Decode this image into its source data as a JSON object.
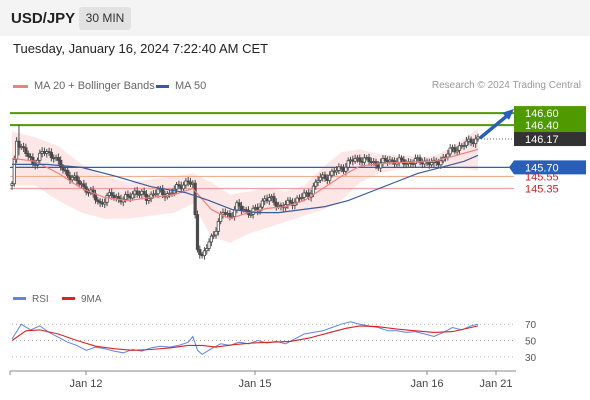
{
  "header": {
    "symbol": "USD/JPY",
    "timeframe": "30 MIN",
    "timestamp": "Tuesday, January 16, 2024 7:22:40 AM CET",
    "credit": "Research © 2024 Trading Central"
  },
  "colors": {
    "candle": "#4a4a4a",
    "ma20": "#f08080",
    "bollinger_fill": "#fde2e2",
    "ma50": "#3b5a9a",
    "resistance": "#4f9a00",
    "support": "#2a5fb8",
    "support_light": "#f2a0a0",
    "pivot": "#f0b090",
    "rsi": "#5b86e5",
    "rsi_ma": "#dd2222",
    "projection": "#2a5fb8"
  },
  "chart_data": [
    {
      "type": "candlestick",
      "legend": [
        {
          "name": "MA 20 + Bollinger Bands",
          "color": "#f08080"
        },
        {
          "name": "MA 50",
          "color": "#3b5a9a"
        }
      ],
      "x_ticks": [
        "Jan 12",
        "Jan 15",
        "Jan 16",
        "Jan 21"
      ],
      "price_range": [
        143.75,
        146.9
      ],
      "last_price": 146.17,
      "levels": [
        {
          "value": 146.6,
          "label": "146.60",
          "role": "resistance"
        },
        {
          "value": 146.4,
          "label": "146.40",
          "role": "resistance"
        },
        {
          "value": 146.17,
          "label": "146.17",
          "role": "last"
        },
        {
          "value": 145.7,
          "label": "145.70",
          "role": "pivot"
        },
        {
          "value": 145.55,
          "label": "145.55",
          "role": "support"
        },
        {
          "value": 145.35,
          "label": "145.35",
          "role": "support"
        }
      ],
      "close_path": [
        [
          0,
          145.4
        ],
        [
          2,
          146.15
        ],
        [
          5,
          146.0
        ],
        [
          9,
          145.75
        ],
        [
          13,
          145.95
        ],
        [
          18,
          145.9
        ],
        [
          22,
          145.65
        ],
        [
          27,
          145.5
        ],
        [
          32,
          145.35
        ],
        [
          38,
          145.1
        ],
        [
          43,
          145.25
        ],
        [
          48,
          145.15
        ],
        [
          53,
          145.3
        ],
        [
          58,
          145.2
        ],
        [
          63,
          145.3
        ],
        [
          68,
          145.25
        ],
        [
          72,
          145.4
        ],
        [
          76,
          145.45
        ],
        [
          78,
          145.4
        ],
        [
          79,
          144.9
        ],
        [
          80,
          144.4
        ],
        [
          82,
          144.2
        ],
        [
          85,
          144.45
        ],
        [
          88,
          144.7
        ],
        [
          91,
          144.95
        ],
        [
          94,
          144.9
        ],
        [
          97,
          145.05
        ],
        [
          100,
          145.0
        ],
        [
          103,
          144.95
        ],
        [
          106,
          145.0
        ],
        [
          109,
          145.2
        ],
        [
          112,
          145.15
        ],
        [
          116,
          145.05
        ],
        [
          120,
          145.1
        ],
        [
          124,
          145.2
        ],
        [
          128,
          145.25
        ],
        [
          132,
          145.5
        ],
        [
          136,
          145.55
        ],
        [
          140,
          145.65
        ],
        [
          143,
          145.7
        ],
        [
          146,
          145.8
        ],
        [
          150,
          145.85
        ],
        [
          154,
          145.8
        ],
        [
          158,
          145.75
        ],
        [
          162,
          145.82
        ],
        [
          166,
          145.8
        ],
        [
          170,
          145.78
        ],
        [
          174,
          145.8
        ],
        [
          178,
          145.8
        ],
        [
          182,
          145.75
        ],
        [
          186,
          145.85
        ],
        [
          190,
          146.0
        ],
        [
          194,
          146.05
        ],
        [
          198,
          146.15
        ],
        [
          201,
          146.17
        ]
      ],
      "ma20": [
        [
          0,
          145.85
        ],
        [
          10,
          145.8
        ],
        [
          20,
          145.6
        ],
        [
          30,
          145.35
        ],
        [
          40,
          145.2
        ],
        [
          50,
          145.15
        ],
        [
          60,
          145.2
        ],
        [
          70,
          145.25
        ],
        [
          78,
          145.35
        ],
        [
          86,
          145.0
        ],
        [
          94,
          144.85
        ],
        [
          102,
          144.95
        ],
        [
          110,
          145.02
        ],
        [
          118,
          145.05
        ],
        [
          126,
          145.15
        ],
        [
          134,
          145.35
        ],
        [
          142,
          145.55
        ],
        [
          150,
          145.72
        ],
        [
          158,
          145.76
        ],
        [
          166,
          145.78
        ],
        [
          174,
          145.79
        ],
        [
          182,
          145.8
        ],
        [
          190,
          145.88
        ],
        [
          201,
          146.0
        ]
      ],
      "bb_upper": [
        [
          0,
          146.3
        ],
        [
          10,
          146.2
        ],
        [
          20,
          146.05
        ],
        [
          30,
          145.75
        ],
        [
          40,
          145.55
        ],
        [
          50,
          145.45
        ],
        [
          60,
          145.5
        ],
        [
          70,
          145.55
        ],
        [
          78,
          145.6
        ],
        [
          86,
          145.45
        ],
        [
          94,
          145.25
        ],
        [
          102,
          145.3
        ],
        [
          110,
          145.35
        ],
        [
          118,
          145.3
        ],
        [
          126,
          145.4
        ],
        [
          134,
          145.7
        ],
        [
          142,
          145.95
        ],
        [
          150,
          146.0
        ],
        [
          158,
          145.92
        ],
        [
          166,
          145.9
        ],
        [
          174,
          145.88
        ],
        [
          182,
          145.88
        ],
        [
          190,
          146.05
        ],
        [
          201,
          146.35
        ]
      ],
      "bb_lower": [
        [
          0,
          145.4
        ],
        [
          10,
          145.4
        ],
        [
          20,
          145.15
        ],
        [
          30,
          144.95
        ],
        [
          40,
          144.85
        ],
        [
          50,
          144.85
        ],
        [
          60,
          144.9
        ],
        [
          70,
          144.95
        ],
        [
          78,
          145.1
        ],
        [
          86,
          144.55
        ],
        [
          94,
          144.45
        ],
        [
          102,
          144.6
        ],
        [
          110,
          144.7
        ],
        [
          118,
          144.8
        ],
        [
          126,
          144.9
        ],
        [
          134,
          145.0
        ],
        [
          142,
          145.15
        ],
        [
          150,
          145.45
        ],
        [
          158,
          145.6
        ],
        [
          166,
          145.66
        ],
        [
          174,
          145.7
        ],
        [
          182,
          145.72
        ],
        [
          190,
          145.7
        ],
        [
          201,
          145.65
        ]
      ],
      "ma50": [
        [
          0,
          145.75
        ],
        [
          15,
          145.75
        ],
        [
          30,
          145.7
        ],
        [
          45,
          145.55
        ],
        [
          60,
          145.38
        ],
        [
          75,
          145.28
        ],
        [
          85,
          145.15
        ],
        [
          95,
          145.0
        ],
        [
          105,
          144.95
        ],
        [
          115,
          144.95
        ],
        [
          125,
          145.0
        ],
        [
          135,
          145.05
        ],
        [
          145,
          145.15
        ],
        [
          155,
          145.3
        ],
        [
          165,
          145.45
        ],
        [
          175,
          145.6
        ],
        [
          185,
          145.7
        ],
        [
          195,
          145.8
        ],
        [
          201,
          145.9
        ]
      ],
      "projection": {
        "from": 146.2,
        "to": 146.62
      }
    },
    {
      "type": "line",
      "legend": [
        {
          "name": "RSI",
          "color": "#5b86e5"
        },
        {
          "name": "9MA",
          "color": "#dd2222"
        }
      ],
      "y_ticks": [
        70,
        50,
        30
      ],
      "y_range": [
        20,
        85
      ],
      "rsi": [
        [
          0,
          52
        ],
        [
          4,
          70
        ],
        [
          8,
          63
        ],
        [
          12,
          68
        ],
        [
          16,
          60
        ],
        [
          20,
          54
        ],
        [
          24,
          48
        ],
        [
          28,
          44
        ],
        [
          32,
          38
        ],
        [
          36,
          42
        ],
        [
          40,
          40
        ],
        [
          44,
          37
        ],
        [
          48,
          35
        ],
        [
          52,
          39
        ],
        [
          56,
          37
        ],
        [
          60,
          41
        ],
        [
          64,
          43
        ],
        [
          68,
          42
        ],
        [
          72,
          44
        ],
        [
          76,
          48
        ],
        [
          78,
          55
        ],
        [
          80,
          38
        ],
        [
          82,
          33
        ],
        [
          86,
          40
        ],
        [
          90,
          46
        ],
        [
          94,
          44
        ],
        [
          98,
          48
        ],
        [
          102,
          46
        ],
        [
          106,
          50
        ],
        [
          110,
          47
        ],
        [
          114,
          49
        ],
        [
          118,
          46
        ],
        [
          122,
          52
        ],
        [
          126,
          58
        ],
        [
          130,
          60
        ],
        [
          134,
          62
        ],
        [
          138,
          66
        ],
        [
          142,
          70
        ],
        [
          146,
          73
        ],
        [
          150,
          70
        ],
        [
          154,
          68
        ],
        [
          158,
          66
        ],
        [
          162,
          62
        ],
        [
          166,
          62
        ],
        [
          170,
          60
        ],
        [
          174,
          61
        ],
        [
          178,
          58
        ],
        [
          182,
          55
        ],
        [
          186,
          60
        ],
        [
          190,
          66
        ],
        [
          194,
          63
        ],
        [
          198,
          68
        ],
        [
          201,
          70
        ]
      ],
      "rsi_ma": [
        [
          0,
          50
        ],
        [
          6,
          62
        ],
        [
          12,
          63
        ],
        [
          20,
          58
        ],
        [
          28,
          50
        ],
        [
          36,
          43
        ],
        [
          44,
          40
        ],
        [
          52,
          38
        ],
        [
          60,
          39
        ],
        [
          68,
          41
        ],
        [
          76,
          44
        ],
        [
          82,
          44
        ],
        [
          88,
          42
        ],
        [
          96,
          45
        ],
        [
          104,
          47
        ],
        [
          112,
          48
        ],
        [
          120,
          49
        ],
        [
          128,
          53
        ],
        [
          136,
          59
        ],
        [
          144,
          65
        ],
        [
          150,
          68
        ],
        [
          158,
          67
        ],
        [
          166,
          64
        ],
        [
          174,
          62
        ],
        [
          182,
          60
        ],
        [
          190,
          61
        ],
        [
          198,
          66
        ],
        [
          201,
          68
        ]
      ]
    }
  ]
}
